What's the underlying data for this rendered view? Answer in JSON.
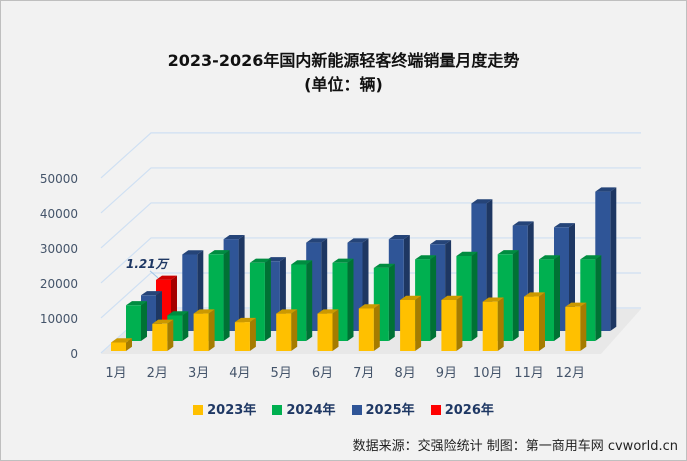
{
  "chart_data": {
    "type": "bar",
    "title": "2023-2026年国内新能源轻客终端销量月度走势",
    "subtitle": "(单位：辆)",
    "categories": [
      "1月",
      "2月",
      "3月",
      "4月",
      "5月",
      "6月",
      "7月",
      "8月",
      "9月",
      "10月",
      "11月",
      "12月"
    ],
    "yticks": [
      "0",
      "10000",
      "20000",
      "30000",
      "40000",
      "50000"
    ],
    "ylim": [
      0,
      50000
    ],
    "series": [
      {
        "name": "2023年",
        "color": "#ffc000",
        "values": [
          2500,
          8000,
          11000,
          8500,
          11000,
          11000,
          12500,
          15000,
          15000,
          14500,
          16000,
          13000
        ]
      },
      {
        "name": "2024年",
        "color": "#00b050",
        "values": [
          10500,
          7500,
          25500,
          23000,
          22500,
          23000,
          21500,
          24000,
          25000,
          25500,
          24000,
          24000
        ]
      },
      {
        "name": "2025年",
        "color": "#2f5597",
        "values": [
          10500,
          22500,
          27000,
          20500,
          26000,
          26000,
          27000,
          25500,
          37500,
          31000,
          30500,
          41000
        ]
      },
      {
        "name": "2026年",
        "color": "#ff0000",
        "values": [
          12100,
          null,
          null,
          null,
          null,
          null,
          null,
          null,
          null,
          null,
          null,
          null
        ]
      }
    ],
    "annotation": "1.21万",
    "legend_position": "bottom",
    "grid": true
  },
  "source": "数据来源：交强险统计  制图：第一商用车网 cvworld.cn"
}
